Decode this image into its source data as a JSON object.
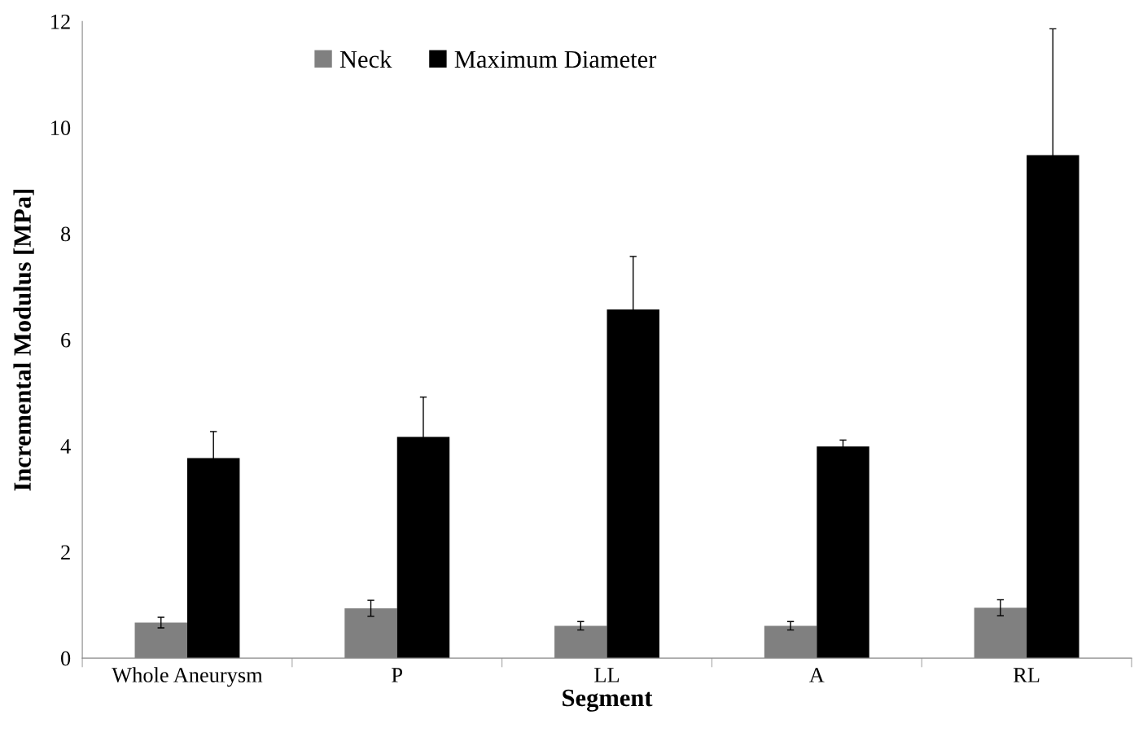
{
  "chart_data": {
    "type": "bar",
    "xlabel": "Segment",
    "ylabel": "Incremental Modulus [MPa]",
    "categories": [
      "Whole Aneurysm",
      "P",
      "LL",
      "A",
      "RL"
    ],
    "series": [
      {
        "name": "Neck",
        "color": "#808080",
        "values": [
          0.67,
          0.94,
          0.61,
          0.61,
          0.95
        ],
        "errors": [
          0.1,
          0.15,
          0.08,
          0.08,
          0.15
        ]
      },
      {
        "name": "Maximum Diameter",
        "color": "#000000",
        "values": [
          3.77,
          4.17,
          6.57,
          3.99,
          9.48
        ],
        "errors": [
          0.5,
          0.75,
          1.0,
          0.12,
          2.38
        ]
      }
    ],
    "ylim": [
      0,
      12
    ],
    "yticks": [
      0,
      2,
      4,
      6,
      8,
      10,
      12
    ],
    "grid": false,
    "legend": "top left"
  }
}
